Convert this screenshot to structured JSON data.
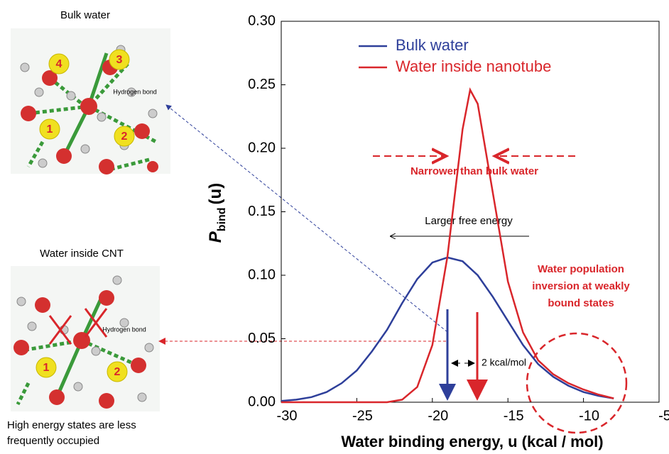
{
  "chart_data": {
    "type": "line",
    "xlabel": "Water binding energy, u (kcal / mol)",
    "ylabel_main": "P",
    "ylabel_sub": "bind",
    "ylabel_tail": "(u)",
    "xlim": [
      -30,
      -5
    ],
    "ylim": [
      0,
      0.3
    ],
    "xticks": [
      -30,
      -25,
      -20,
      -15,
      -10,
      -5
    ],
    "yticks": [
      {
        "value": 0,
        "label": "0.00"
      },
      {
        "value": 0.05,
        "label": "0.05"
      },
      {
        "value": 0.1,
        "label": "0.10"
      },
      {
        "value": 0.15,
        "label": "0.15"
      },
      {
        "value": 0.2,
        "label": "0.20"
      },
      {
        "value": 0.25,
        "label": "0.25"
      },
      {
        "value": 0.3,
        "label": "0.30"
      }
    ],
    "series": [
      {
        "name": "Bulk water",
        "color": "#2e3f9a",
        "x": [
          -30,
          -29,
          -28,
          -27,
          -26,
          -25,
          -24,
          -23,
          -22,
          -21,
          -20,
          -19,
          -18,
          -17,
          -16,
          -15,
          -14,
          -13,
          -12,
          -11,
          -10,
          -9,
          -8
        ],
        "values": [
          0.001,
          0.002,
          0.004,
          0.008,
          0.015,
          0.025,
          0.04,
          0.057,
          0.078,
          0.097,
          0.11,
          0.114,
          0.111,
          0.1,
          0.083,
          0.064,
          0.045,
          0.03,
          0.02,
          0.013,
          0.008,
          0.005,
          0.003
        ]
      },
      {
        "name": "Water inside nanotube",
        "color": "#d9262b",
        "x": [
          -30,
          -29,
          -28,
          -27,
          -26,
          -25,
          -24,
          -23,
          -22,
          -21,
          -20,
          -19,
          -18,
          -17.5,
          -17,
          -16,
          -15,
          -14,
          -13,
          -12,
          -11,
          -10,
          -9,
          -8
        ],
        "values": [
          0,
          0,
          0,
          0,
          0,
          0,
          0,
          0,
          0.002,
          0.012,
          0.045,
          0.115,
          0.215,
          0.246,
          0.235,
          0.165,
          0.095,
          0.055,
          0.033,
          0.022,
          0.015,
          0.01,
          0.006,
          0.003
        ]
      }
    ],
    "annotations": [
      "Narrower than bulk water",
      "Larger free energy",
      "Water population",
      "inversion at weakly",
      "bound states",
      "2 kcal/mol"
    ]
  },
  "panels": {
    "top_title": "Bulk water",
    "bottom_title": "Water inside CNT",
    "hbond_label": "Hydrogen bond",
    "top_numbers": [
      "1",
      "2",
      "3",
      "4"
    ],
    "bottom_numbers": [
      "1",
      "2"
    ],
    "caption": [
      "High energy states are less",
      "frequently occupied"
    ]
  }
}
